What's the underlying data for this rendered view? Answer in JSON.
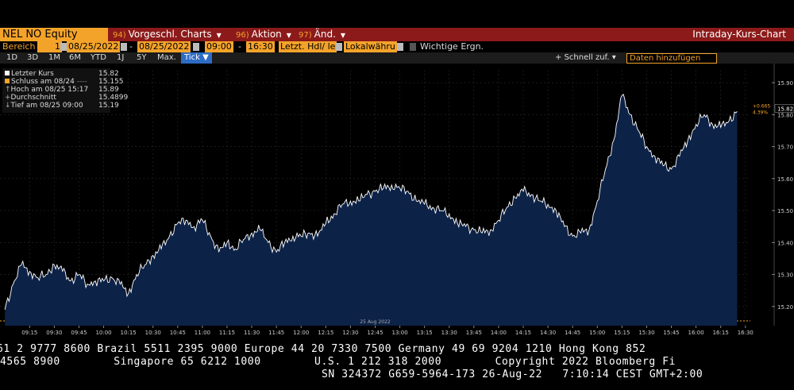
{
  "header": {
    "ticker": "NEL NO Equity",
    "menu1_num": "94)",
    "menu1_label": "Vorgeschl. Charts",
    "menu2_num": "96)",
    "menu2_label": "Aktion",
    "menu3_num": "97)",
    "menu3_label": "Änd.",
    "title": "Intraday-Kurs-Chart"
  },
  "controls": {
    "range_label": "Bereich",
    "range_value": "1",
    "date_from": "08/25/2022",
    "date_to": "08/25/2022",
    "time_from": "09:00",
    "time_to": "16:30",
    "price_type": "Letzt. Hdl/ le",
    "currency": "Lokalwähru",
    "events_label": "Wichtige Ergn."
  },
  "periods": [
    "1D",
    "3D",
    "1M",
    "6M",
    "YTD",
    "1J",
    "5Y",
    "Max."
  ],
  "tick_label": "Tick",
  "quick_zoom": "Schnell zuf.",
  "add_data_placeholder": "Daten hinzufügen",
  "legend": {
    "last_label": "Letzter Kurs",
    "last_value": "15.82",
    "close_label": "Schluss am 08/24",
    "close_value": "15.155",
    "high_label": "Hoch am 08/25 15:17",
    "high_value": "15.89",
    "avg_label": "Durchschnitt",
    "avg_value": "15.4899",
    "low_label": "Tief am 08/25 09:00",
    "low_value": "15.19"
  },
  "colors": {
    "header_bar": "#8c1a1a",
    "accent": "#f4a32a",
    "area_fill": "#0d2247",
    "line": "#ffffff"
  },
  "chart_data": {
    "type": "area",
    "title": "",
    "date_label": "25 Aug 2022",
    "x_ticks": [
      "09:15",
      "09:30",
      "09:45",
      "10:00",
      "10:15",
      "10:30",
      "10:45",
      "11:00",
      "11:15",
      "11:30",
      "11:45",
      "12:00",
      "12:15",
      "12:30",
      "12:45",
      "13:00",
      "13:15",
      "13:30",
      "13:45",
      "14:00",
      "14:15",
      "14:30",
      "14:45",
      "15:00",
      "15:15",
      "15:30",
      "15:45",
      "16:00",
      "16:15",
      "16:30"
    ],
    "y_ticks": [
      "15.20",
      "15.30",
      "15.40",
      "15.50",
      "15.60",
      "15.70",
      "15.80",
      "15.90"
    ],
    "ylim": [
      15.14,
      15.94
    ],
    "reference_line": 15.155,
    "last_price": 15.82,
    "change_abs": "+0.665",
    "change_pct": "4.39%",
    "x": [
      "09:00",
      "09:05",
      "09:10",
      "09:15",
      "09:20",
      "09:25",
      "09:30",
      "09:35",
      "09:40",
      "09:45",
      "09:50",
      "09:55",
      "10:00",
      "10:05",
      "10:10",
      "10:15",
      "10:20",
      "10:25",
      "10:30",
      "10:35",
      "10:40",
      "10:45",
      "10:50",
      "10:55",
      "11:00",
      "11:05",
      "11:10",
      "11:15",
      "11:20",
      "11:25",
      "11:30",
      "11:35",
      "11:40",
      "11:45",
      "11:50",
      "11:55",
      "12:00",
      "12:05",
      "12:10",
      "12:15",
      "12:20",
      "12:25",
      "12:30",
      "12:35",
      "12:40",
      "12:45",
      "12:50",
      "12:55",
      "13:00",
      "13:05",
      "13:10",
      "13:15",
      "13:20",
      "13:25",
      "13:30",
      "13:35",
      "13:40",
      "13:45",
      "13:50",
      "13:55",
      "14:00",
      "14:05",
      "14:10",
      "14:15",
      "14:20",
      "14:25",
      "14:30",
      "14:35",
      "14:40",
      "14:45",
      "14:50",
      "14:55",
      "15:00",
      "15:05",
      "15:10",
      "15:15",
      "15:20",
      "15:25",
      "15:30",
      "15:35",
      "15:40",
      "15:45",
      "15:50",
      "15:55",
      "16:00",
      "16:05",
      "16:10",
      "16:15",
      "16:20",
      "16:25"
    ],
    "values": [
      15.19,
      15.27,
      15.33,
      15.31,
      15.29,
      15.3,
      15.33,
      15.31,
      15.28,
      15.3,
      15.27,
      15.28,
      15.28,
      15.29,
      15.27,
      15.24,
      15.3,
      15.33,
      15.36,
      15.38,
      15.42,
      15.46,
      15.47,
      15.45,
      15.47,
      15.42,
      15.37,
      15.4,
      15.38,
      15.41,
      15.43,
      15.44,
      15.4,
      15.37,
      15.4,
      15.42,
      15.42,
      15.43,
      15.42,
      15.46,
      15.49,
      15.52,
      15.53,
      15.53,
      15.55,
      15.56,
      15.57,
      15.58,
      15.57,
      15.56,
      15.53,
      15.52,
      15.51,
      15.5,
      15.49,
      15.46,
      15.45,
      15.44,
      15.43,
      15.44,
      15.47,
      15.51,
      15.54,
      15.56,
      15.55,
      15.53,
      15.52,
      15.5,
      15.45,
      15.42,
      15.43,
      15.44,
      15.53,
      15.63,
      15.72,
      15.86,
      15.8,
      15.75,
      15.7,
      15.67,
      15.64,
      15.63,
      15.67,
      15.72,
      15.77,
      15.8,
      15.77,
      15.76,
      15.78,
      15.81
    ]
  },
  "footer": {
    "line1": "61 2 9777 8600 Brazil 5511 2395 9000 Europe 44 20 7330 7500 Germany 49 69 9204 1210 Hong Kong 852",
    "line2": "4565 8900        Singapore 65 6212 1000        U.S. 1 212 318 2000        Copyright 2022 Bloomberg Fi",
    "line3": "SN 324372 G659-5964-173 26-Aug-22   7:10:14 CEST GMT+2:00"
  }
}
